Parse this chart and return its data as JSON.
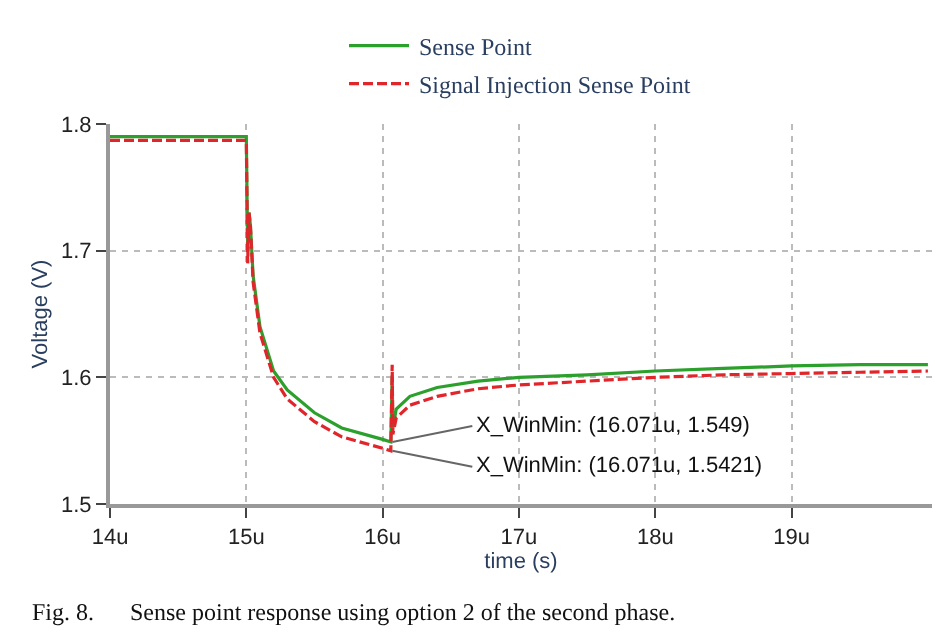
{
  "chart_data": {
    "type": "line",
    "xlabel": "time (s)",
    "ylabel": "Voltage (V)",
    "xlim": [
      14,
      20.03
    ],
    "ylim": [
      1.5,
      1.8
    ],
    "xticks": [
      {
        "value": 14,
        "label": "14u"
      },
      {
        "value": 15,
        "label": "15u"
      },
      {
        "value": 16,
        "label": "16u"
      },
      {
        "value": 17,
        "label": "17u"
      },
      {
        "value": 18,
        "label": "18u"
      },
      {
        "value": 19,
        "label": "19u"
      }
    ],
    "yticks": [
      1.5,
      1.6,
      1.7,
      1.8
    ],
    "grid": true,
    "legend": "top",
    "marker": "none",
    "series": [
      {
        "name": "Sense Point",
        "color": "#2ca02c",
        "line_style": "solid",
        "x": [
          14,
          14.5,
          15,
          15.01,
          15.02,
          15.03,
          15.05,
          15.1,
          15.2,
          15.3,
          15.5,
          15.7,
          16,
          16.06,
          16.07,
          16.075,
          16.1,
          16.2,
          16.4,
          16.7,
          17,
          17.5,
          18,
          18.5,
          19,
          19.5,
          20
        ],
        "values": [
          1.79,
          1.79,
          1.79,
          1.7,
          1.73,
          1.72,
          1.68,
          1.64,
          1.605,
          1.59,
          1.572,
          1.56,
          1.551,
          1.549,
          1.6,
          1.56,
          1.575,
          1.585,
          1.592,
          1.597,
          1.6,
          1.602,
          1.605,
          1.607,
          1.609,
          1.61,
          1.61
        ]
      },
      {
        "name": "Signal Injection Sense Point",
        "color": "#e0262a",
        "line_style": "dashed",
        "x": [
          14,
          14.5,
          15,
          15.01,
          15.02,
          15.03,
          15.05,
          15.1,
          15.2,
          15.3,
          15.5,
          15.7,
          16,
          16.06,
          16.07,
          16.075,
          16.1,
          16.2,
          16.4,
          16.7,
          17,
          17.5,
          18,
          18.5,
          19,
          19.5,
          20
        ],
        "values": [
          1.787,
          1.787,
          1.787,
          1.69,
          1.73,
          1.72,
          1.675,
          1.635,
          1.6,
          1.583,
          1.565,
          1.553,
          1.544,
          1.542,
          1.61,
          1.555,
          1.568,
          1.578,
          1.585,
          1.591,
          1.594,
          1.597,
          1.6,
          1.602,
          1.603,
          1.604,
          1.605
        ]
      }
    ],
    "annotations": [
      {
        "text": "X_WinMin: (16.071u, 1.549)",
        "x": 16.071,
        "y": 1.549
      },
      {
        "text": "X_WinMin: (16.071u, 1.5421)",
        "x": 16.071,
        "y": 1.5421
      },
      "Fig. 8.      Sense point response using option 2 of the second phase."
    ]
  }
}
